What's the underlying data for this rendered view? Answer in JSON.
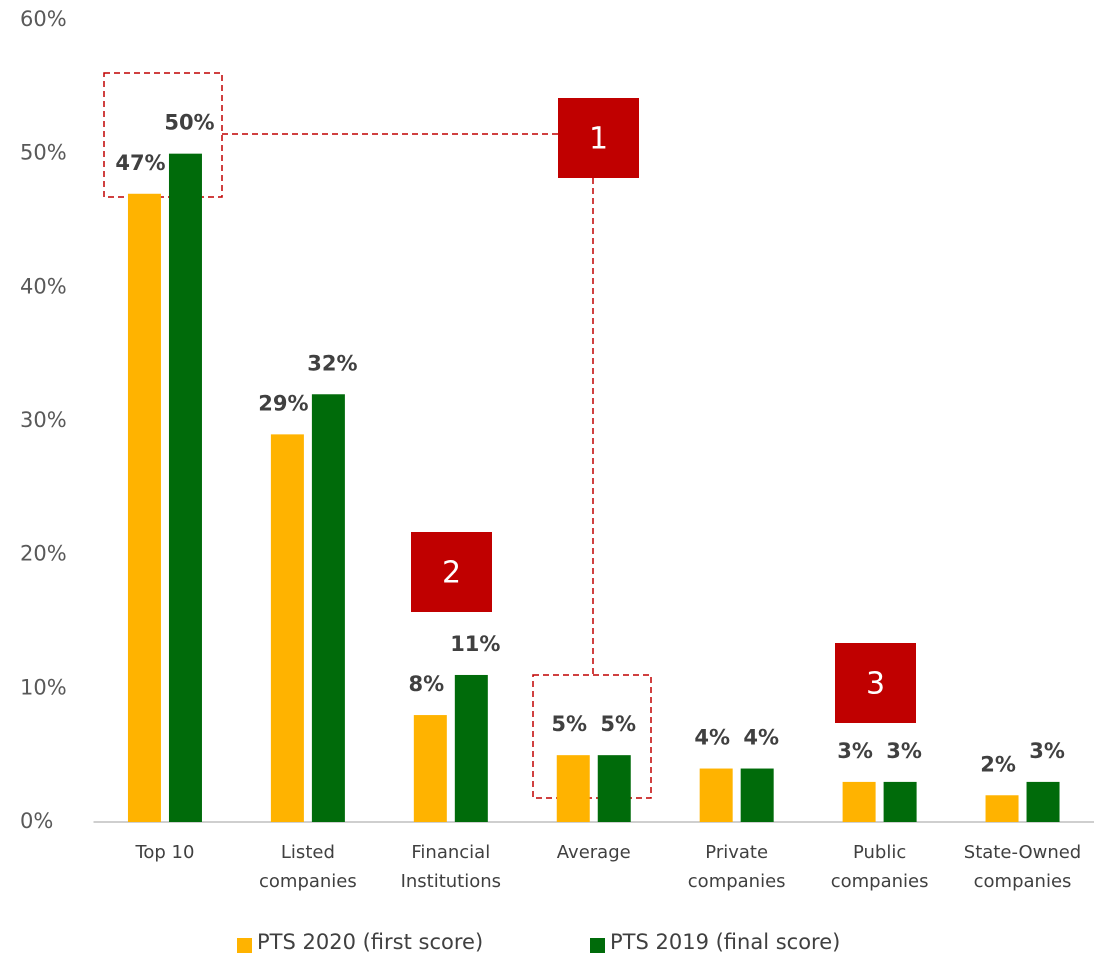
{
  "chart_data": {
    "type": "bar",
    "categories": [
      "Top 10",
      "Listed companies",
      "Financial Institutions",
      "Average",
      "Private companies",
      "Public companies",
      "State-Owned companies"
    ],
    "series": [
      {
        "name": "PTS 2020 (first score)",
        "color": "#ffb300",
        "values": [
          47,
          29,
          8,
          5,
          4,
          3,
          2
        ],
        "value_labels": [
          "47%",
          "29%",
          "8%",
          "5%",
          "4%",
          "3%",
          "2%"
        ]
      },
      {
        "name": "PTS 2019 (final score)",
        "color": "#006b0a",
        "values": [
          50,
          32,
          11,
          5,
          4,
          3,
          3
        ],
        "value_labels": [
          "50%",
          "32%",
          "11%",
          "5%",
          "4%",
          "3%",
          "3%"
        ]
      }
    ],
    "ylim": [
      0,
      60
    ],
    "yticks": [
      {
        "value": 0,
        "label": "0%"
      },
      {
        "value": 10,
        "label": "10%"
      },
      {
        "value": 20,
        "label": "20%"
      },
      {
        "value": 30,
        "label": "30%"
      },
      {
        "value": 40,
        "label": "40%"
      },
      {
        "value": 50,
        "label": "50%"
      },
      {
        "value": 60,
        "label": "60%"
      }
    ],
    "grid": false,
    "legend": "bottom",
    "annotations": [
      "1",
      "2",
      "3"
    ]
  }
}
